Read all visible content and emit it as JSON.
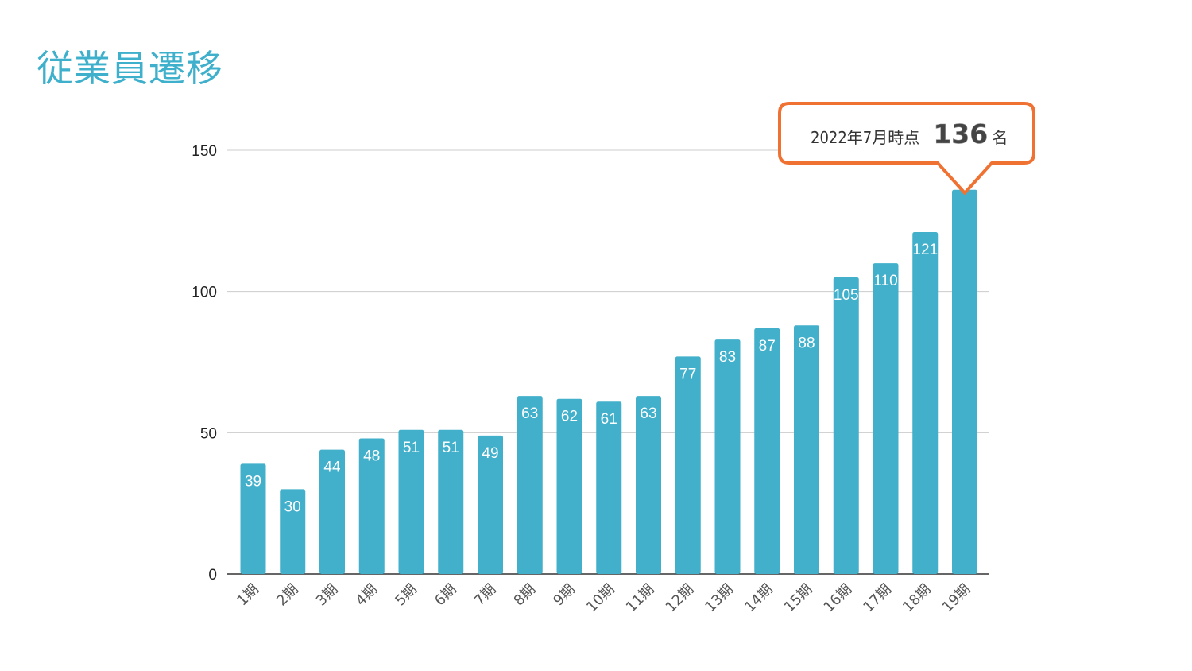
{
  "title": "従業員遷移",
  "colors": {
    "bar": "#42b0cb",
    "title": "#3fb0cc",
    "callout_border": "#f07232",
    "grid": "#cccccc"
  },
  "callout": {
    "prefix": "2022年7月時点",
    "value": "136",
    "suffix": "名"
  },
  "chart_data": {
    "type": "bar",
    "title": "",
    "xlabel": "",
    "ylabel": "",
    "categories": [
      "1期",
      "2期",
      "3期",
      "4期",
      "5期",
      "6期",
      "7期",
      "8期",
      "9期",
      "10期",
      "11期",
      "12期",
      "13期",
      "14期",
      "15期",
      "16期",
      "17期",
      "18期",
      "19期"
    ],
    "values": [
      39,
      30,
      44,
      48,
      51,
      51,
      49,
      63,
      62,
      61,
      63,
      77,
      83,
      87,
      88,
      105,
      110,
      121,
      136
    ],
    "data_labels": [
      "39",
      "30",
      "44",
      "48",
      "51",
      "51",
      "49",
      "63",
      "62",
      "61",
      "63",
      "77",
      "83",
      "87",
      "88",
      "105",
      "110",
      "121",
      ""
    ],
    "yticks": [
      0,
      50,
      100,
      150
    ],
    "ylim": [
      0,
      150
    ],
    "grid": true,
    "legend": "none"
  }
}
